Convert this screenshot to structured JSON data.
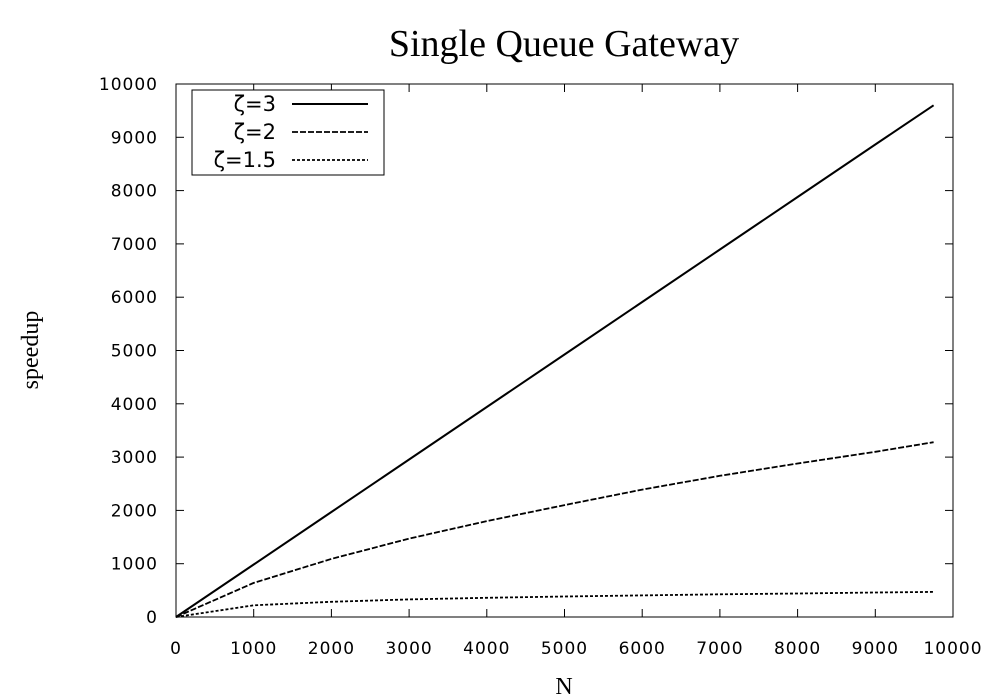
{
  "chart_data": {
    "type": "line",
    "title": "Single Queue Gateway",
    "xlabel": "N",
    "ylabel": "speedup",
    "xlim": [
      0,
      10000
    ],
    "ylim": [
      0,
      10000
    ],
    "xticks": [
      0,
      1000,
      2000,
      3000,
      4000,
      5000,
      6000,
      7000,
      8000,
      9000,
      10000
    ],
    "yticks": [
      0,
      1000,
      2000,
      3000,
      4000,
      5000,
      6000,
      7000,
      8000,
      9000,
      10000
    ],
    "x_tick_labels": [
      "0",
      "1000",
      "2000",
      "3000",
      "4000",
      "5000",
      "6000",
      "7000",
      "8000",
      "9000",
      "10000"
    ],
    "y_tick_labels": [
      "0",
      "1000",
      "2000",
      "3000",
      "4000",
      "5000",
      "6000",
      "7000",
      "8000",
      "9000",
      "10000"
    ],
    "grid": false,
    "legend_position": "top-left",
    "series": [
      {
        "name": "ζ=3",
        "style": "solid",
        "color": "#000000",
        "x": [
          0,
          1000,
          2000,
          3000,
          4000,
          5000,
          6000,
          7000,
          8000,
          9000,
          9750
        ],
        "y": [
          0,
          985,
          1970,
          2955,
          3940,
          4925,
          5910,
          6895,
          7880,
          8865,
          9600
        ]
      },
      {
        "name": "ζ=2",
        "style": "dashed",
        "color": "#000000",
        "x": [
          0,
          1000,
          2000,
          3000,
          4000,
          5000,
          6000,
          7000,
          8000,
          9000,
          9750
        ],
        "y": [
          0,
          640,
          1090,
          1470,
          1800,
          2100,
          2390,
          2650,
          2880,
          3100,
          3280
        ]
      },
      {
        "name": "ζ=1.5",
        "style": "dotted",
        "color": "#000000",
        "x": [
          0,
          1000,
          2000,
          3000,
          4000,
          5000,
          6000,
          7000,
          8000,
          9000,
          9750
        ],
        "y": [
          0,
          220,
          285,
          330,
          360,
          385,
          405,
          425,
          440,
          460,
          470
        ]
      }
    ]
  }
}
